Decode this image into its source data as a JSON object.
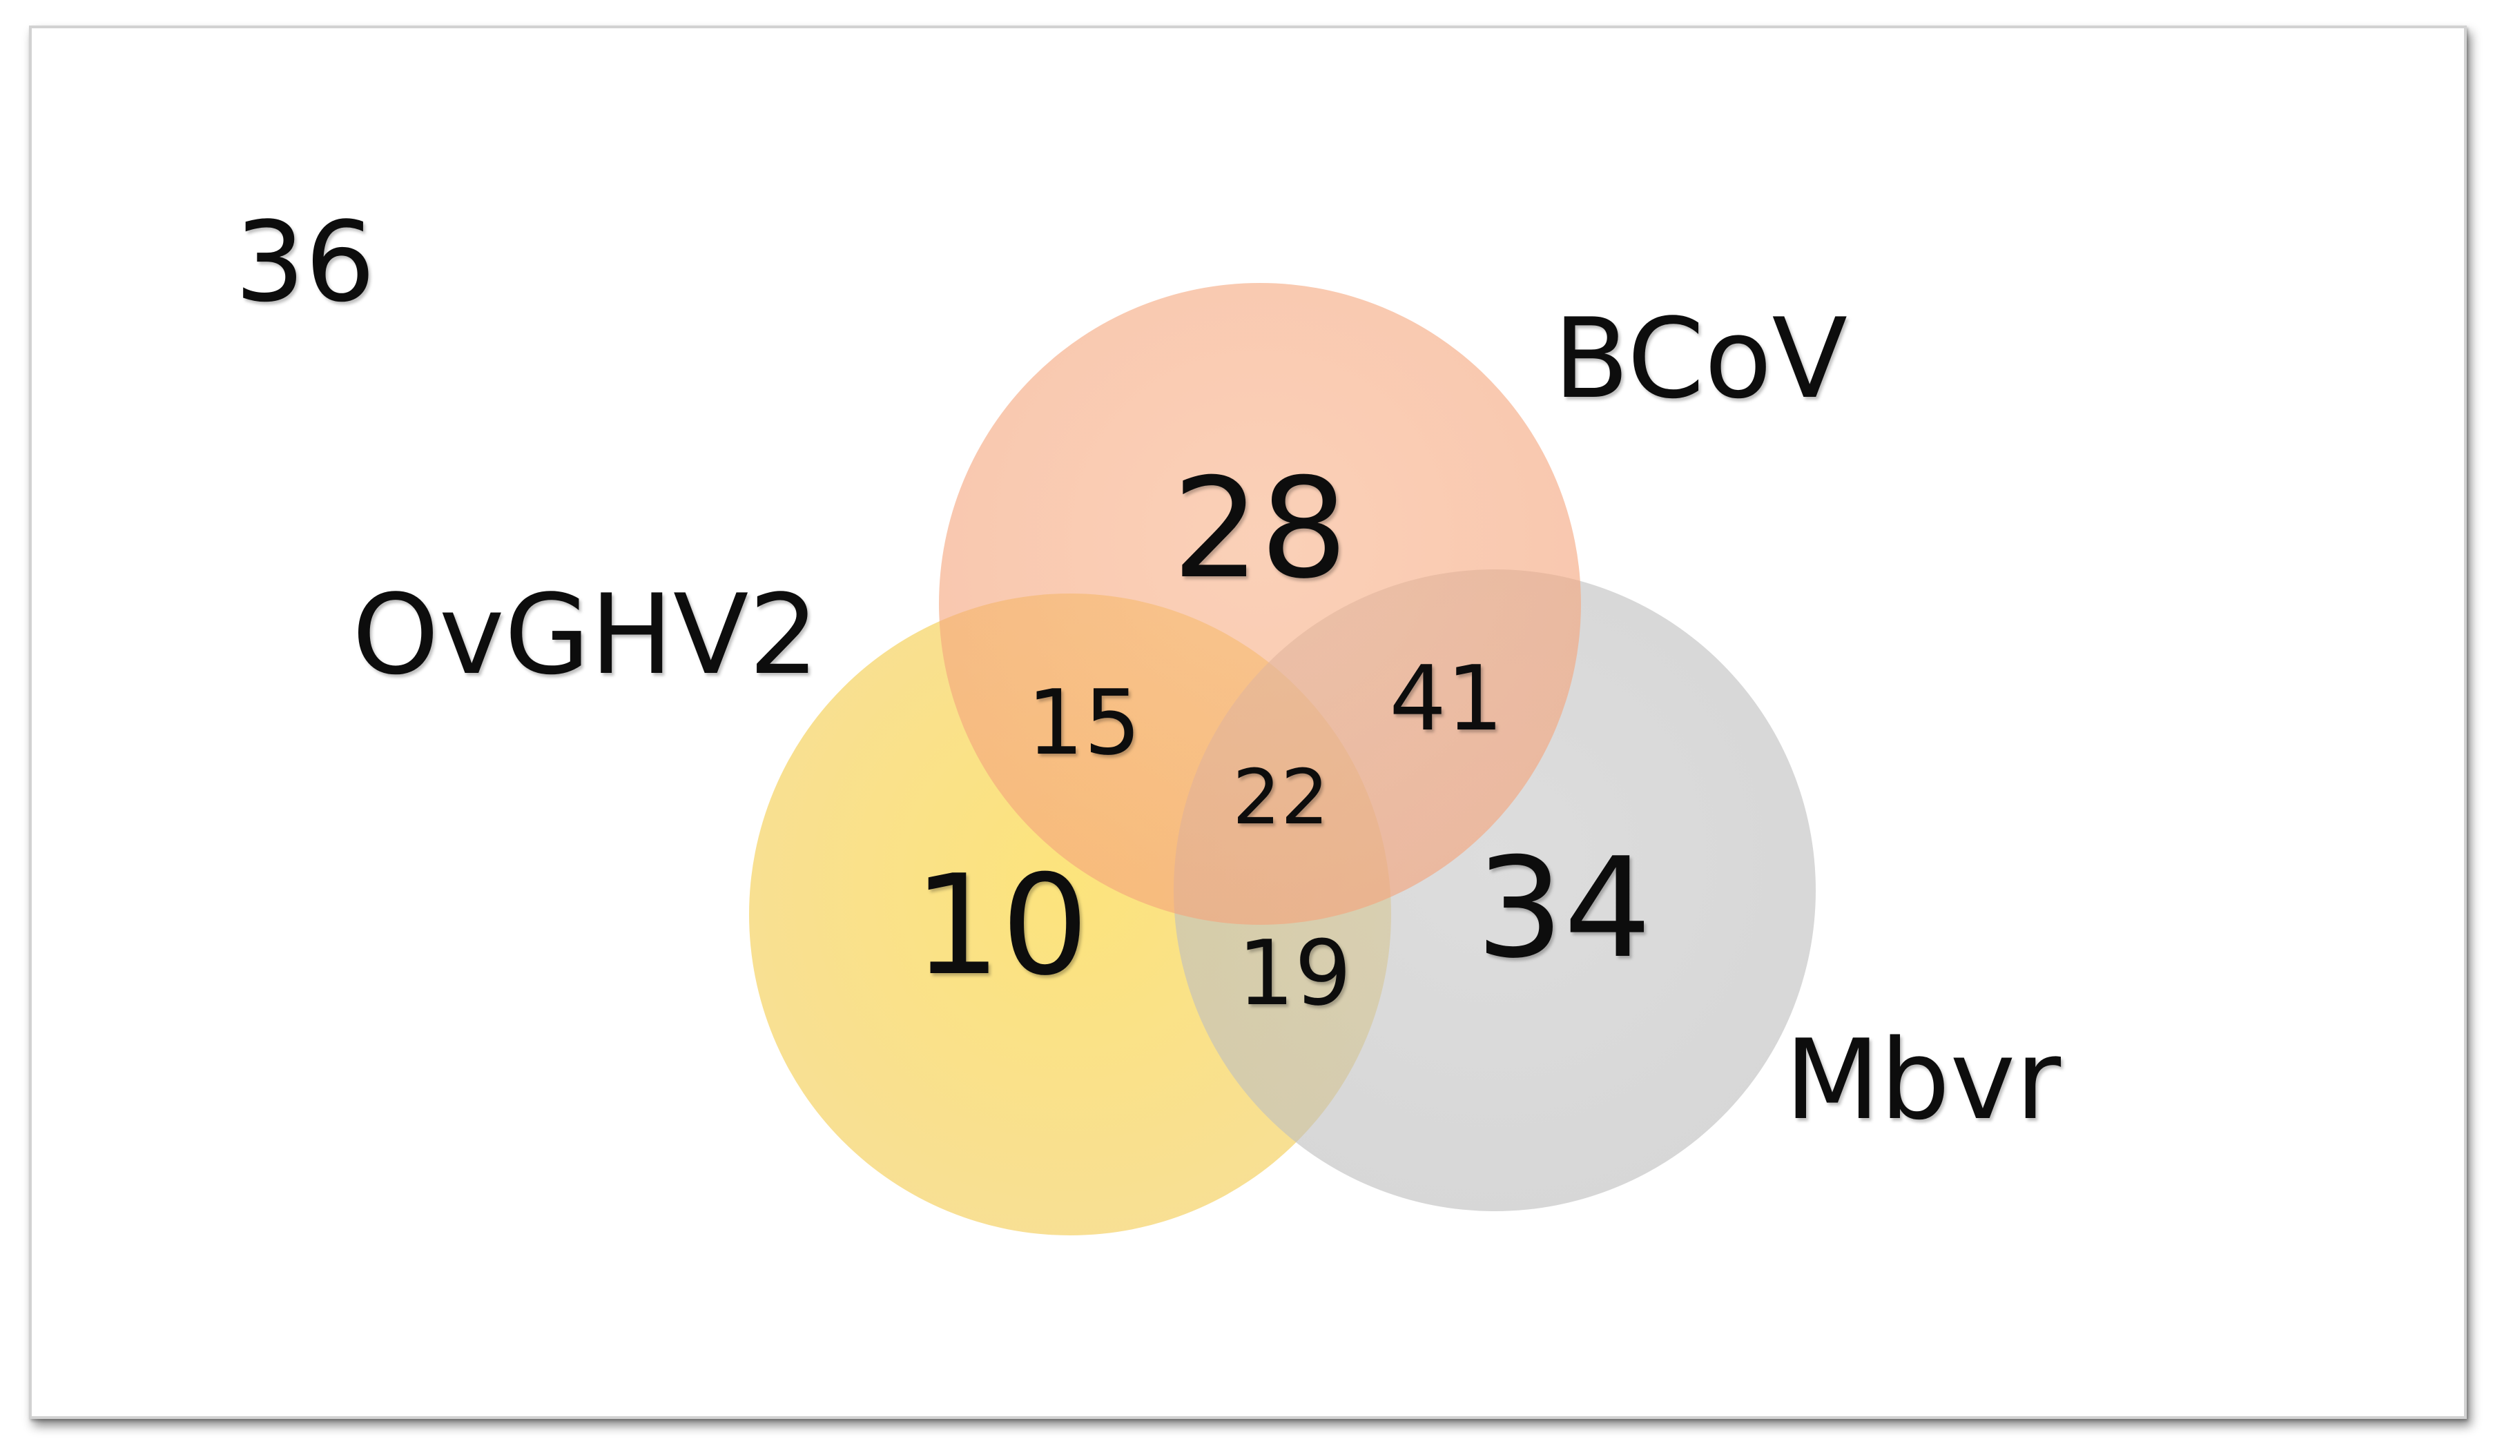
{
  "diagram": {
    "type": "venn-3",
    "outside_count": "36",
    "sets": [
      {
        "name": "BCoV",
        "color": "#f5a577",
        "exclusive": "28"
      },
      {
        "name": "OvGHV2",
        "color": "#f9d452",
        "exclusive": "10"
      },
      {
        "name": "Mbvr",
        "color": "#c4c4c4",
        "exclusive": "34"
      }
    ],
    "intersections": {
      "BCoV_OvGHV2": "15",
      "BCoV_Mbvr": "41",
      "OvGHV2_Mbvr": "19",
      "all": "22"
    }
  }
}
